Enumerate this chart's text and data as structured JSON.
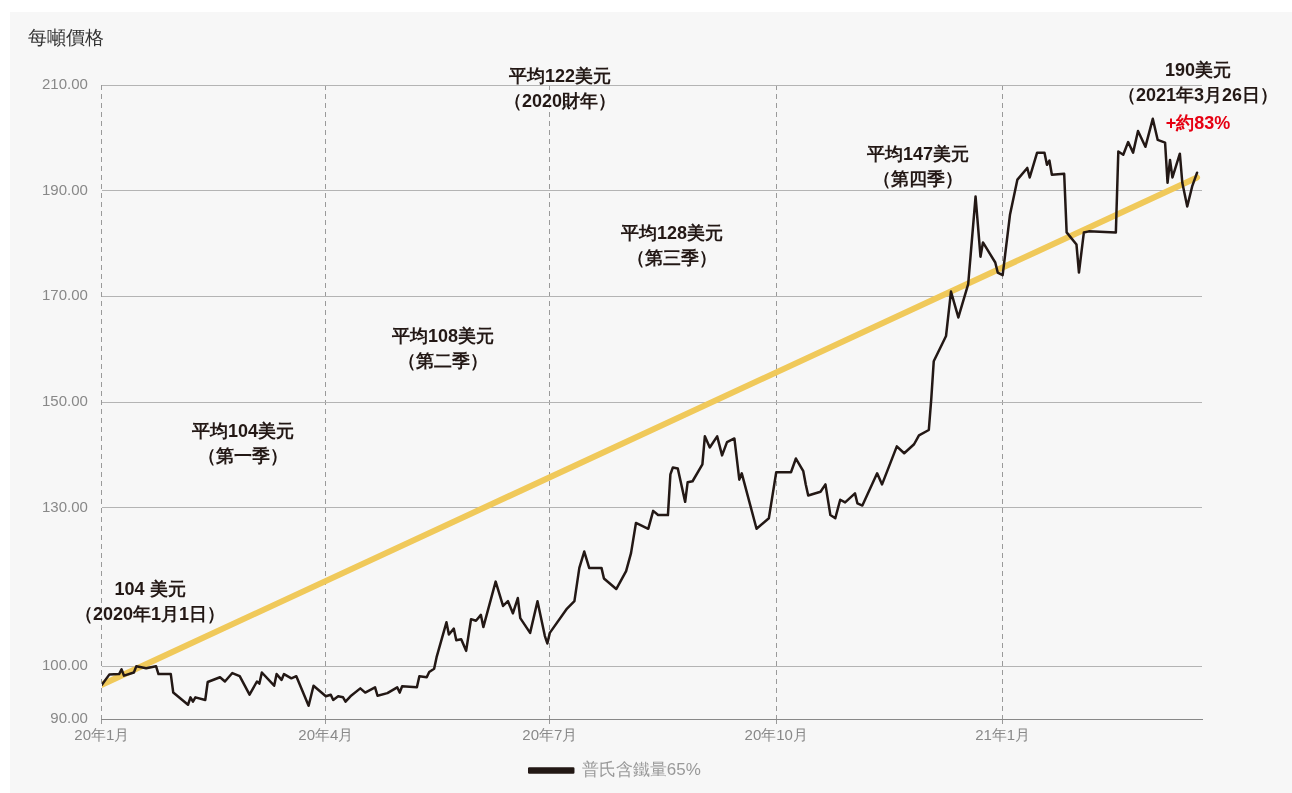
{
  "chart_data": {
    "type": "line",
    "ylabel": "每噸價格",
    "xlim": [
      "2020-01-01",
      "2021-03-23"
    ],
    "xticks": [
      {
        "value": "2020-01-01",
        "label": "20年1月"
      },
      {
        "value": "2020-04-01",
        "label": "20年4月"
      },
      {
        "value": "2020-07-01",
        "label": "20年7月"
      },
      {
        "value": "2020-10-01",
        "label": "20年10月"
      },
      {
        "value": "2021-01-01",
        "label": "21年1月"
      }
    ],
    "ylim": [
      90,
      210
    ],
    "yticks": [
      {
        "value": 90,
        "label": "90.00"
      },
      {
        "value": 100,
        "label": "100.00"
      },
      {
        "value": 130,
        "label": "130.00"
      },
      {
        "value": 150,
        "label": "150.00"
      },
      {
        "value": 170,
        "label": "170.00"
      },
      {
        "value": 190,
        "label": "190.00"
      },
      {
        "value": 210,
        "label": "210.00"
      }
    ],
    "grid": true,
    "legend": "bottom",
    "series": [
      {
        "name": "普氏含鐵量65%",
        "color": "#231815",
        "x": [
          "2020-01-01",
          "2020-01-04",
          "2020-01-08",
          "2020-01-09",
          "2020-01-10",
          "2020-01-14",
          "2020-01-15",
          "2020-01-19",
          "2020-01-23",
          "2020-01-24",
          "2020-01-29",
          "2020-01-30",
          "2020-02-05",
          "2020-02-06",
          "2020-02-07",
          "2020-02-08",
          "2020-02-12",
          "2020-02-13",
          "2020-02-18",
          "2020-02-20",
          "2020-02-23",
          "2020-02-26",
          "2020-03-01",
          "2020-03-04",
          "2020-03-05",
          "2020-03-06",
          "2020-03-11",
          "2020-03-12",
          "2020-03-14",
          "2020-03-15",
          "2020-03-18",
          "2020-03-20",
          "2020-03-25",
          "2020-03-27",
          "2020-04-01",
          "2020-04-03",
          "2020-04-04",
          "2020-04-06",
          "2020-04-08",
          "2020-04-09",
          "2020-04-11",
          "2020-04-15",
          "2020-04-17",
          "2020-04-21",
          "2020-04-22",
          "2020-04-26",
          "2020-04-30",
          "2020-05-01",
          "2020-05-02",
          "2020-05-08",
          "2020-05-09",
          "2020-05-12",
          "2020-05-13",
          "2020-05-15",
          "2020-05-16",
          "2020-05-20",
          "2020-05-21",
          "2020-05-23",
          "2020-05-24",
          "2020-05-26",
          "2020-05-28",
          "2020-05-30",
          "2020-06-01",
          "2020-06-03",
          "2020-06-04",
          "2020-06-09",
          "2020-06-12",
          "2020-06-14",
          "2020-06-16",
          "2020-06-18",
          "2020-06-19",
          "2020-06-23",
          "2020-06-26",
          "2020-06-29",
          "2020-06-30",
          "2020-07-01",
          "2020-07-08",
          "2020-07-11",
          "2020-07-13",
          "2020-07-15",
          "2020-07-17",
          "2020-07-22",
          "2020-07-23",
          "2020-07-28",
          "2020-08-01",
          "2020-08-03",
          "2020-08-05",
          "2020-08-10",
          "2020-08-12",
          "2020-08-14",
          "2020-08-18",
          "2020-08-19",
          "2020-08-20",
          "2020-08-22",
          "2020-08-25",
          "2020-08-26",
          "2020-08-28",
          "2020-09-01",
          "2020-09-02",
          "2020-09-04",
          "2020-09-07",
          "2020-09-09",
          "2020-09-11",
          "2020-09-14",
          "2020-09-16",
          "2020-09-17",
          "2020-09-23",
          "2020-09-28",
          "2020-10-01",
          "2020-10-07",
          "2020-10-09",
          "2020-10-12",
          "2020-10-13",
          "2020-10-14",
          "2020-10-19",
          "2020-10-21",
          "2020-10-23",
          "2020-10-25",
          "2020-10-27",
          "2020-10-29",
          "2020-11-02",
          "2020-11-03",
          "2020-11-05",
          "2020-11-11",
          "2020-11-13",
          "2020-11-19",
          "2020-11-22",
          "2020-11-26",
          "2020-11-28",
          "2020-12-02",
          "2020-12-03",
          "2020-12-04",
          "2020-12-09",
          "2020-12-11",
          "2020-12-14",
          "2020-12-18",
          "2020-12-21",
          "2020-12-23",
          "2020-12-24",
          "2020-12-29",
          "2020-12-30",
          "2021-01-01",
          "2021-01-04",
          "2021-01-07",
          "2021-01-11",
          "2021-01-12",
          "2021-01-15",
          "2021-01-18",
          "2021-01-19",
          "2021-01-20",
          "2021-01-21",
          "2021-01-26",
          "2021-01-27",
          "2021-01-31",
          "2021-02-01",
          "2021-02-03",
          "2021-02-05",
          "2021-02-16",
          "2021-02-17",
          "2021-02-19",
          "2021-02-21",
          "2021-02-23",
          "2021-02-25",
          "2021-02-28",
          "2021-03-03",
          "2021-03-05",
          "2021-03-08",
          "2021-03-09",
          "2021-03-10",
          "2021-03-11",
          "2021-03-14",
          "2021-03-15",
          "2021-03-17",
          "2021-03-19",
          "2021-03-21"
        ],
        "values": [
          96.5,
          98.4,
          98.5,
          99.4,
          98.2,
          98.8,
          100,
          99.6,
          100,
          98.5,
          98.5,
          95.0,
          92.7,
          94.1,
          93.3,
          94.1,
          93.6,
          97.0,
          97.9,
          97.1,
          98.7,
          98.1,
          94.6,
          97.1,
          96.7,
          98.8,
          96.3,
          98.5,
          97.4,
          98.5,
          97.7,
          98.1,
          92.5,
          96.3,
          94.3,
          94.6,
          93.6,
          94.3,
          94.1,
          93.3,
          94.3,
          95.8,
          95.0,
          96.0,
          94.4,
          94.9,
          96.0,
          95.0,
          96.2,
          96.0,
          98.1,
          97.9,
          98.9,
          99.5,
          101.7,
          108.3,
          106.0,
          107.1,
          104.9,
          105.1,
          102.9,
          108.9,
          108.6,
          109.7,
          107.4,
          116.0,
          111.4,
          112.3,
          110.0,
          112.9,
          109.1,
          106.3,
          112.3,
          105.7,
          104.3,
          106.3,
          110.9,
          112.3,
          118.6,
          121.7,
          118.6,
          118.6,
          116.6,
          114.6,
          118.0,
          121.4,
          127.1,
          126.0,
          129.4,
          128.6,
          128.6,
          136.3,
          137.6,
          137.4,
          131.1,
          134.8,
          135.0,
          138.2,
          143.5,
          141.4,
          143.5,
          139.9,
          142.4,
          143.1,
          135.3,
          136.5,
          126.0,
          128.0,
          136.7,
          136.7,
          139.3,
          136.9,
          134.4,
          132.3,
          133.0,
          134.4,
          128.6,
          128.0,
          131.5,
          131.0,
          132.7,
          130.8,
          130.4,
          136.5,
          134.4,
          141.6,
          140.3,
          142.0,
          143.7,
          144.7,
          150.6,
          157.7,
          162.5,
          170.9,
          166.0,
          172.3,
          188.9,
          177.5,
          180.2,
          176.4,
          174.5,
          174.0,
          185.5,
          192.1,
          194.3,
          192.5,
          197.2,
          197.2,
          194.9,
          195.7,
          193.0,
          193.2,
          182.1,
          179.8,
          174.5,
          182.1,
          182.3,
          182.1,
          197.4,
          196.8,
          199.2,
          197.2,
          201.3,
          198.3,
          203.6,
          199.6,
          199.1,
          191.5,
          195.8,
          192.5,
          197.0,
          191.5,
          187.0,
          190.8,
          193.4
        ]
      },
      {
        "color": "#f0c95a",
        "x": [
          "2020-01-01",
          "2021-03-21"
        ],
        "values": [
          96.5,
          192.5
        ]
      }
    ],
    "annotations": [
      "平均104美元（第一季）",
      "平均108美元（第二季）",
      "平均122美元（2020財年）",
      "平均128美元（第三季）",
      "平均147美元（第四季）",
      "104 美元（2020年1月1日）",
      "190美元（2021年3月26日）",
      "+約83%"
    ]
  }
}
